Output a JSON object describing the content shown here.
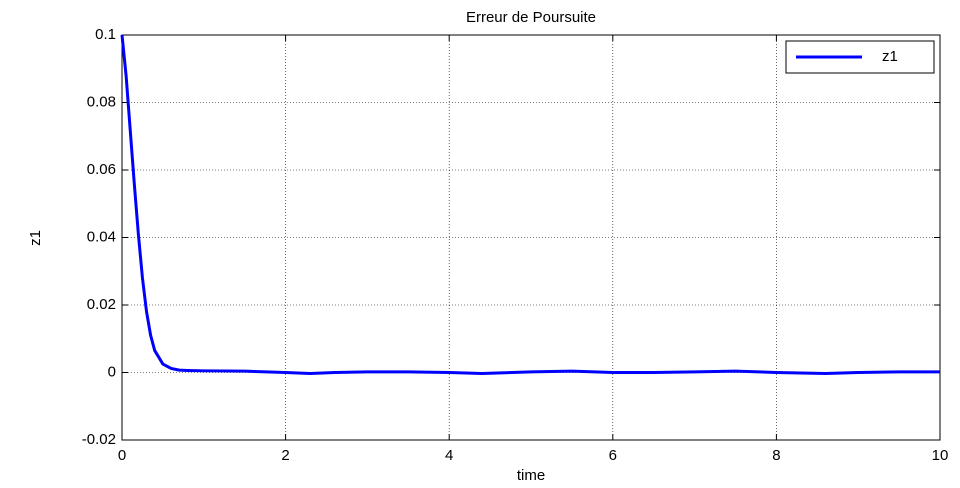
{
  "chart_data": {
    "type": "line",
    "title": "Erreur de Poursuite",
    "x_label": "time",
    "y_label": "z1",
    "x": [
      0,
      0.05,
      0.1,
      0.15,
      0.2,
      0.25,
      0.3,
      0.35,
      0.4,
      0.5,
      0.6,
      0.7,
      0.8,
      1,
      1.5,
      2,
      2.3,
      2.6,
      3,
      3.5,
      4,
      4.4,
      5,
      5.5,
      6,
      6.5,
      7,
      7.5,
      8,
      8.6,
      9,
      9.5,
      10
    ],
    "series": [
      {
        "name": "z1",
        "color": "#0000ff",
        "values": [
          0.1,
          0.088,
          0.072,
          0.056,
          0.041,
          0.028,
          0.018,
          0.011,
          0.0065,
          0.0025,
          0.0012,
          0.0007,
          0.0006,
          0.0005,
          0.0004,
          0.0,
          -0.0003,
          0.0,
          0.0002,
          0.0002,
          0.0,
          -0.0003,
          0.0002,
          0.0004,
          0.0,
          0.0,
          0.0002,
          0.0004,
          0.0,
          -0.0003,
          0.0,
          0.0002,
          0.0002
        ]
      }
    ],
    "xlim": [
      0,
      10
    ],
    "xticks": [
      0,
      2,
      4,
      6,
      8,
      10
    ],
    "ylim": [
      -0.02,
      0.1
    ],
    "yticks": [
      -0.02,
      0,
      0.02,
      0.04,
      0.06,
      0.08,
      0.1
    ],
    "grid": true,
    "legend": "top-right"
  }
}
